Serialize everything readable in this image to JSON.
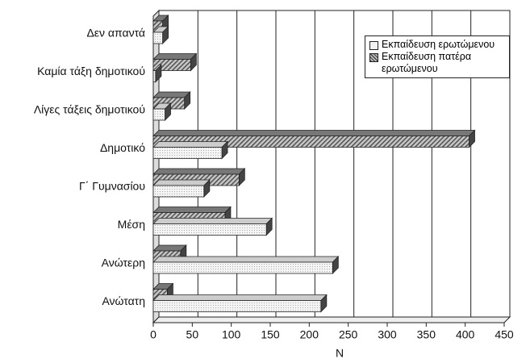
{
  "chart_data": {
    "type": "bar",
    "orientation": "horizontal",
    "categories": [
      "Δεν απαντά",
      "Καμία τάξη δημοτικού",
      "Λίγες τάξεις δημοτικού",
      "Δημοτικό",
      "Γ΄ Γυμνασίου",
      "Μέση",
      "Ανώτερη",
      "Ανώτατη"
    ],
    "series": [
      {
        "name": "Εκπαίδευση ερωτώμενου",
        "color": "#f2f2f2",
        "values": [
          12,
          3,
          15,
          88,
          65,
          145,
          230,
          215
        ]
      },
      {
        "name": "Εκπαίδευση πατέρα ερωτώμενου",
        "color": "#9a9a9a",
        "values": [
          12,
          48,
          40,
          405,
          110,
          92,
          35,
          18
        ]
      }
    ],
    "xlabel": "N",
    "xlim": [
      0,
      450
    ],
    "xticks": [
      0,
      50,
      100,
      150,
      200,
      250,
      300,
      350,
      400,
      450
    ],
    "grid": true,
    "legend": "upper right"
  }
}
